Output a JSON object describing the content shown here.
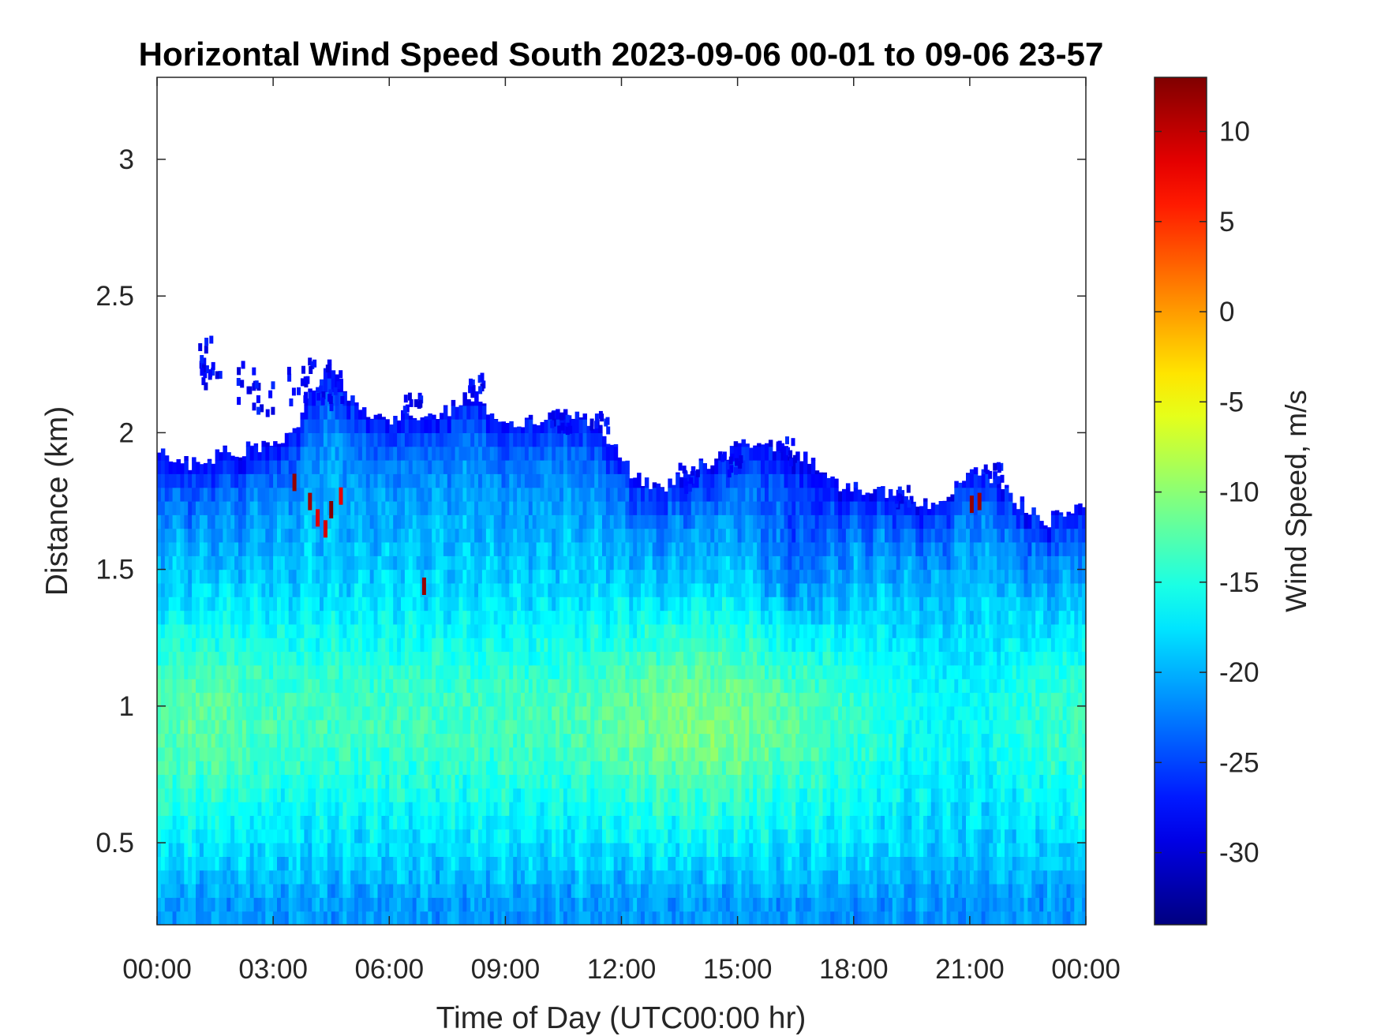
{
  "chart_data": {
    "type": "heatmap",
    "title": "Horizontal Wind Speed South 2023-09-06 00-01 to 09-06 23-57",
    "xlabel": "Time of Day (UTC00:00 hr)",
    "ylabel": "Distance (km)",
    "colorbar_label": "Wind Speed, m/s",
    "xlim_hours": [
      0,
      24
    ],
    "ylim_km": [
      0.2,
      3.3
    ],
    "clim": [
      -34,
      13
    ],
    "colormap": "jet",
    "x_ticks": [
      {
        "hour": 0,
        "label": "00:00"
      },
      {
        "hour": 3,
        "label": "03:00"
      },
      {
        "hour": 6,
        "label": "06:00"
      },
      {
        "hour": 9,
        "label": "09:00"
      },
      {
        "hour": 12,
        "label": "12:00"
      },
      {
        "hour": 15,
        "label": "15:00"
      },
      {
        "hour": 18,
        "label": "18:00"
      },
      {
        "hour": 21,
        "label": "21:00"
      },
      {
        "hour": 24,
        "label": "00:00"
      }
    ],
    "y_ticks": [
      {
        "value": 0.5,
        "label": "0.5"
      },
      {
        "value": 1,
        "label": "1"
      },
      {
        "value": 1.5,
        "label": "1.5"
      },
      {
        "value": 2,
        "label": "2"
      },
      {
        "value": 2.5,
        "label": "2.5"
      },
      {
        "value": 3,
        "label": "3"
      }
    ],
    "colorbar_ticks": [
      {
        "value": 10,
        "label": "10"
      },
      {
        "value": 5,
        "label": "5"
      },
      {
        "value": 0,
        "label": "0"
      },
      {
        "value": -5,
        "label": "-5"
      },
      {
        "value": -10,
        "label": "-10"
      },
      {
        "value": -15,
        "label": "-15"
      },
      {
        "value": -20,
        "label": "-20"
      },
      {
        "value": -25,
        "label": "-25"
      },
      {
        "value": -30,
        "label": "-30"
      }
    ],
    "data_top_km": {
      "hours": [
        0,
        0.5,
        1.0,
        1.5,
        2.0,
        2.5,
        3.0,
        3.5,
        4.0,
        4.5,
        5.0,
        5.5,
        6.0,
        6.5,
        7.0,
        7.5,
        8.0,
        8.5,
        9.0,
        9.5,
        10.0,
        10.5,
        11.0,
        11.5,
        12.0,
        12.5,
        13.0,
        13.5,
        14.0,
        14.5,
        15.0,
        15.5,
        16.0,
        16.5,
        17.0,
        17.5,
        18.0,
        18.5,
        19.0,
        19.5,
        20.0,
        20.5,
        21.0,
        21.5,
        22.0,
        22.5,
        23.0,
        23.5,
        24.0
      ],
      "km": [
        1.92,
        1.9,
        1.88,
        1.92,
        1.93,
        1.95,
        1.97,
        2.0,
        2.15,
        2.25,
        2.12,
        2.06,
        2.04,
        2.07,
        2.05,
        2.08,
        2.15,
        2.1,
        2.02,
        2.04,
        2.06,
        2.08,
        2.05,
        2.0,
        1.9,
        1.82,
        1.78,
        1.85,
        1.88,
        1.9,
        1.95,
        1.96,
        1.95,
        1.93,
        1.88,
        1.82,
        1.8,
        1.8,
        1.78,
        1.76,
        1.72,
        1.78,
        1.86,
        1.85,
        1.78,
        1.72,
        1.68,
        1.7,
        1.72
      ]
    },
    "note_values": "speeds in m/s, mostly between -28 and -6"
  }
}
